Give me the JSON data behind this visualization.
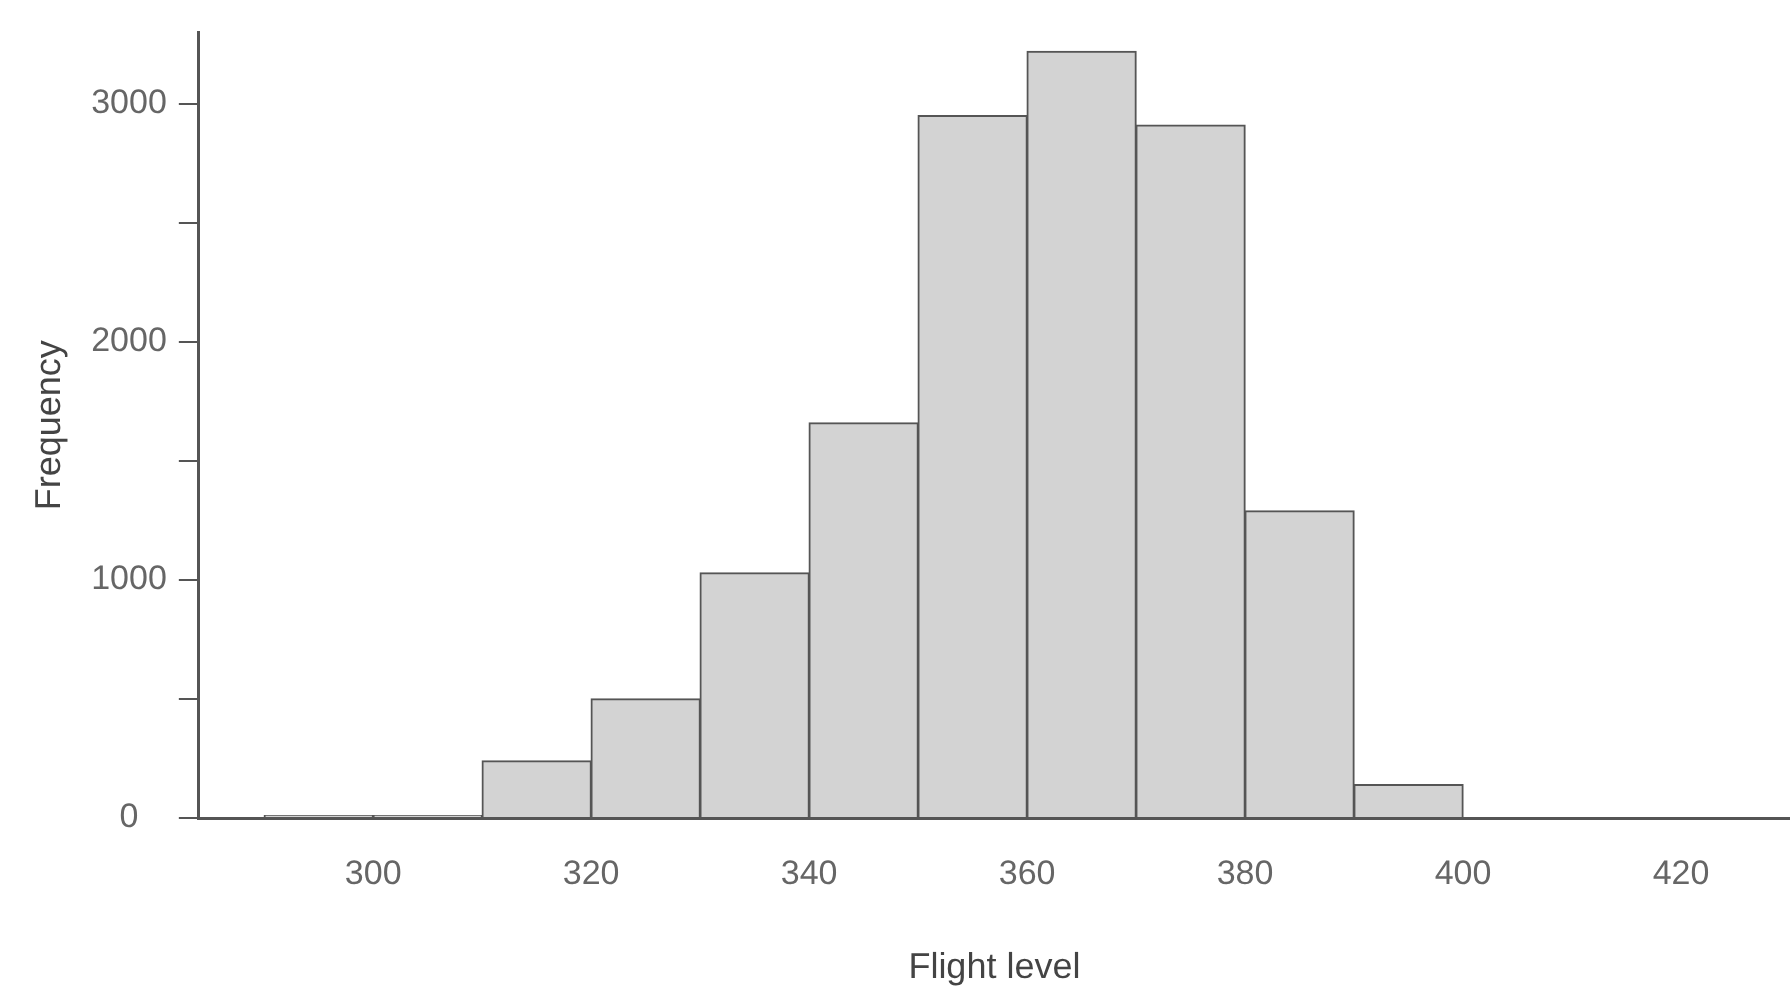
{
  "chart_data": {
    "type": "histogram",
    "xlabel": "Flight level",
    "ylabel": "Frequency",
    "bins": [
      290,
      300,
      310,
      320,
      330,
      340,
      350,
      360,
      370,
      380,
      390,
      400,
      410,
      420,
      430
    ],
    "values": [
      10,
      10,
      240,
      500,
      1030,
      1660,
      2950,
      3220,
      2910,
      1290,
      140,
      0,
      0,
      0
    ],
    "color": "#d3d3d3",
    "xlim": [
      284,
      430
    ],
    "xticks": [
      300,
      320,
      340,
      360,
      380,
      400,
      420
    ],
    "ylim": [
      0,
      3300
    ],
    "yticks": [
      0,
      {
        "value": 500,
        "label": null
      },
      1000,
      {
        "value": 1500,
        "label": null
      },
      2000,
      {
        "value": 2500,
        "label": null
      },
      3000
    ],
    "grid": false,
    "legend": false
  }
}
